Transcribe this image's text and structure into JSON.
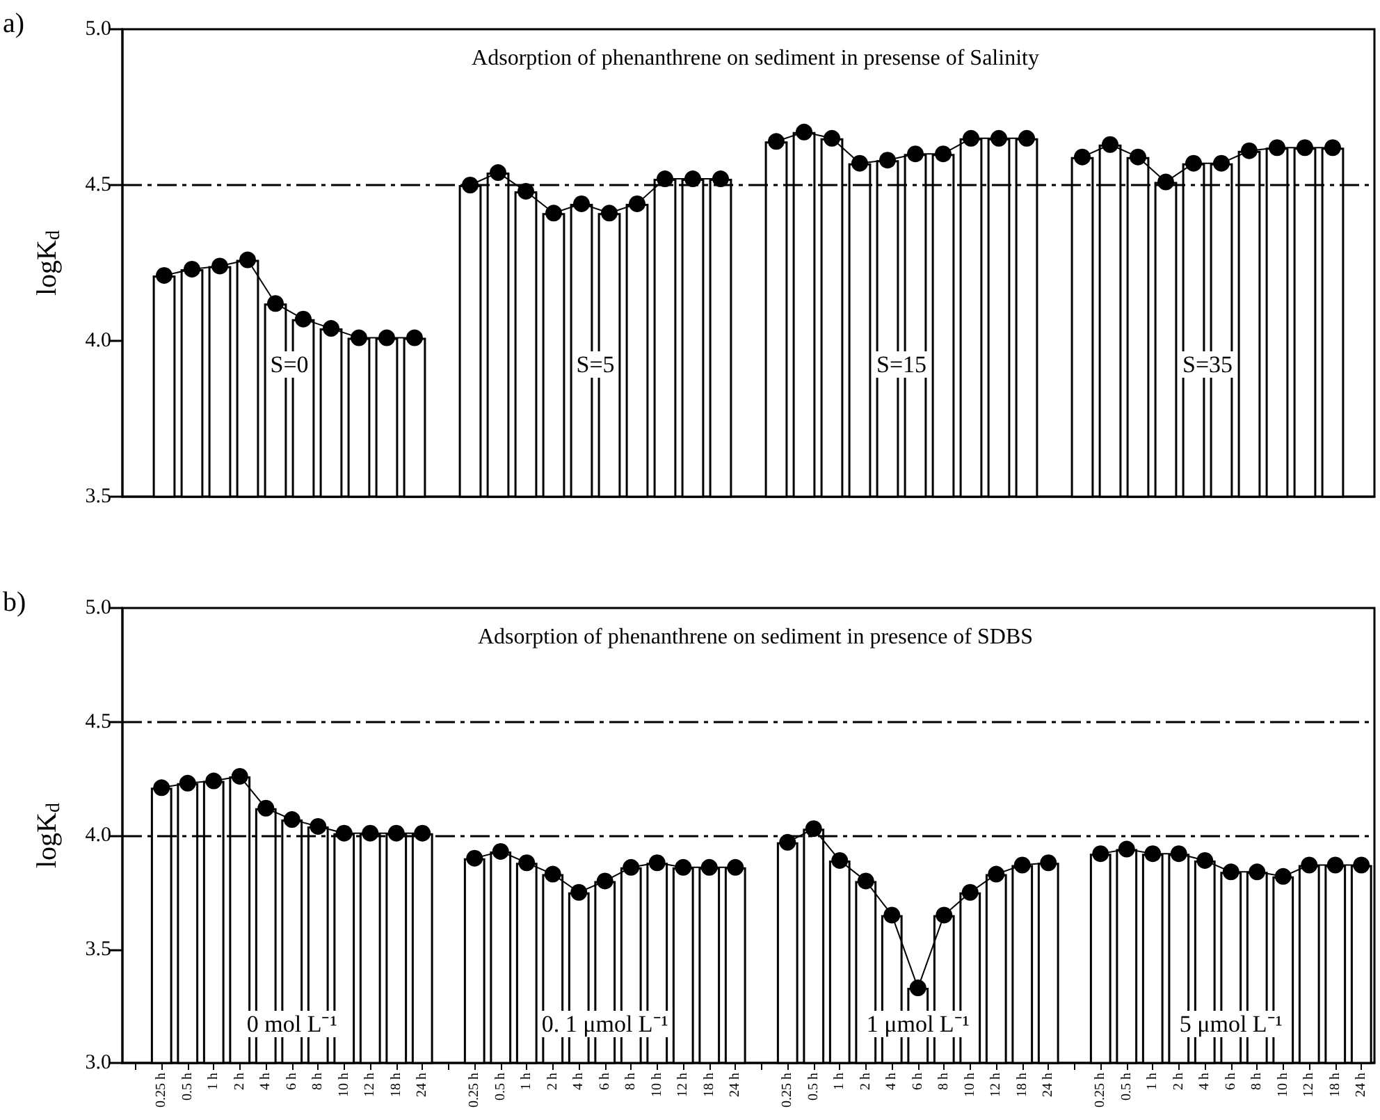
{
  "chart_data": [
    {
      "type": "bar",
      "title": "Adsorption of phenanthrene on sediment in presense of Salinity",
      "ylabel": "logK$_{d}$",
      "annotations": [
        "a)",
        "S=0",
        "S=5",
        "S=15",
        "S=35"
      ],
      "categories": [
        null,
        null,
        null,
        null,
        null,
        null,
        null,
        null,
        null,
        null,
        null,
        null,
        null,
        null,
        null,
        null,
        null,
        null,
        null,
        null,
        null,
        null,
        null,
        null,
        null,
        null,
        null,
        null,
        null,
        null,
        null,
        null,
        null,
        null,
        null,
        null,
        null,
        null,
        null,
        null,
        null,
        null,
        null,
        null,
        null
      ],
      "series": [
        {
          "color": "#ffffff",
          "values": [
            null,
            4.21,
            4.23,
            4.24,
            4.26,
            4.12,
            4.07,
            4.04,
            4.01,
            4.01,
            4.01,
            null,
            4.5,
            4.54,
            4.48,
            4.41,
            4.44,
            4.41,
            4.44,
            4.52,
            4.52,
            4.52,
            null,
            4.64,
            4.67,
            4.65,
            4.57,
            4.58,
            4.6,
            4.6,
            4.65,
            4.65,
            4.65,
            null,
            4.59,
            4.63,
            4.59,
            4.51,
            4.57,
            4.57,
            4.61,
            4.62,
            4.62,
            4.62,
            null
          ]
        },
        {
          "type": "line",
          "color": "#000000",
          "values": [
            null,
            4.21,
            4.23,
            4.24,
            4.26,
            4.12,
            4.07,
            4.04,
            4.01,
            4.01,
            4.01,
            null,
            4.5,
            4.54,
            4.48,
            4.41,
            4.44,
            4.41,
            4.44,
            4.52,
            4.52,
            4.52,
            null,
            4.64,
            4.67,
            4.65,
            4.57,
            4.58,
            4.6,
            4.6,
            4.65,
            4.65,
            4.65,
            null,
            4.59,
            4.63,
            4.59,
            4.51,
            4.57,
            4.57,
            4.61,
            4.62,
            4.62,
            4.62,
            null
          ]
        }
      ],
      "ylim": [
        3.5,
        5.0
      ],
      "yticks": [
        {
          "value": 3.5,
          "label": "3.5"
        },
        {
          "value": 4.0,
          "label": "4.0"
        },
        {
          "value": 4.5,
          "label": "4.5"
        },
        {
          "value": 5.0,
          "label": "5.0"
        }
      ],
      "ref_lines": [
        {
          "axis": "y",
          "value": 4.5,
          "line_style": "dashed"
        }
      ],
      "marker": "circle",
      "line_style": "solid",
      "tick_labels": "y"
    },
    {
      "type": "bar",
      "title": "Adsorption of phenanthrene on sediment in presence of SDBS",
      "ylabel": "logK$_{d}$",
      "annotations": [
        "b)",
        "0 mol L⁻¹",
        "0. 1 μmol L⁻¹",
        "1 μmol L⁻¹",
        "5 μmol L⁻¹"
      ],
      "categories": [
        null,
        "0.25 h",
        "0.5 h",
        "1 h",
        "2 h",
        "4 h",
        "6 h",
        "8 h",
        "10 h",
        "12 h",
        "18 h",
        "24 h",
        null,
        "0.25 h",
        "0.5 h",
        "1 h",
        "2 h",
        "4 h",
        "6 h",
        "8 h",
        "10 h",
        "12 h",
        "18 h",
        "24 h",
        null,
        "0.25 h",
        "0.5 h",
        "1 h",
        "2 h",
        "4 h",
        "6 h",
        "8 h",
        "10 h",
        "12 h",
        "18 h",
        "24 h",
        null,
        "0.25 h",
        "0.5 h",
        "1 h",
        "2 h",
        "4 h",
        "6 h",
        "8 h",
        "10 h",
        "12 h",
        "18 h",
        "24 h"
      ],
      "series": [
        {
          "color": "#ffffff",
          "values": [
            null,
            4.21,
            4.23,
            4.24,
            4.26,
            4.12,
            4.07,
            4.04,
            4.01,
            4.01,
            4.01,
            4.01,
            null,
            3.9,
            3.93,
            3.88,
            3.83,
            3.75,
            3.8,
            3.86,
            3.88,
            3.86,
            3.86,
            3.86,
            null,
            3.97,
            4.03,
            3.89,
            3.8,
            3.65,
            3.33,
            3.65,
            3.75,
            3.83,
            3.87,
            3.88,
            null,
            3.92,
            3.94,
            3.92,
            3.92,
            3.89,
            3.84,
            3.84,
            3.82,
            3.87,
            3.87,
            3.87
          ]
        },
        {
          "type": "line",
          "color": "#000000",
          "values": [
            null,
            4.21,
            4.23,
            4.24,
            4.26,
            4.12,
            4.07,
            4.04,
            4.01,
            4.01,
            4.01,
            4.01,
            null,
            3.9,
            3.93,
            3.88,
            3.83,
            3.75,
            3.8,
            3.86,
            3.88,
            3.86,
            3.86,
            3.86,
            null,
            3.97,
            4.03,
            3.89,
            3.8,
            3.65,
            3.33,
            3.65,
            3.75,
            3.83,
            3.87,
            3.88,
            null,
            3.92,
            3.94,
            3.92,
            3.92,
            3.89,
            3.84,
            3.84,
            3.82,
            3.87,
            3.87,
            3.87
          ]
        }
      ],
      "ylim": [
        3.0,
        5.0
      ],
      "yticks": [
        {
          "value": 3.0,
          "label": "3.0"
        },
        {
          "value": 3.5,
          "label": "3.5"
        },
        {
          "value": 4.0,
          "label": "4.0"
        },
        {
          "value": 4.5,
          "label": "4.5"
        },
        {
          "value": 5.0,
          "label": "5.0"
        }
      ],
      "ref_lines": [
        {
          "axis": "y",
          "value": 4.5,
          "line_style": "dashed"
        },
        {
          "axis": "y",
          "value": 4.0,
          "line_style": "dashed"
        }
      ],
      "marker": "circle",
      "line_style": "solid"
    }
  ]
}
